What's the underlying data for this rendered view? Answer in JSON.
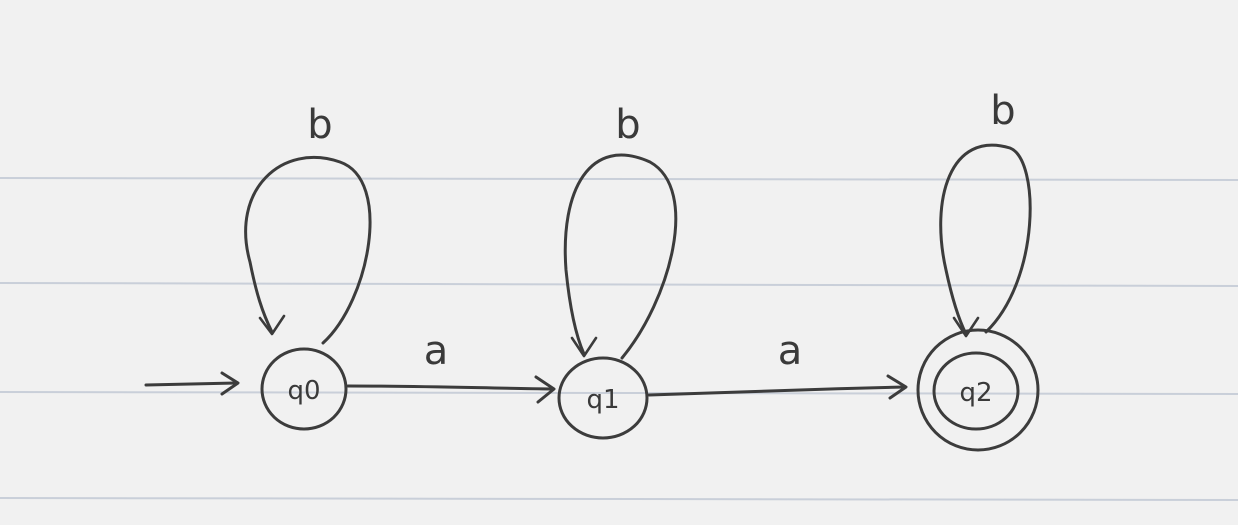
{
  "diagram": {
    "states": [
      {
        "id": "q0",
        "label": "q0",
        "start": true,
        "accepting": false
      },
      {
        "id": "q1",
        "label": "q1",
        "start": false,
        "accepting": false
      },
      {
        "id": "q2",
        "label": "q2",
        "start": false,
        "accepting": true
      }
    ],
    "transitions": [
      {
        "from": "q0",
        "to": "q0",
        "symbol": "b"
      },
      {
        "from": "q1",
        "to": "q1",
        "symbol": "b"
      },
      {
        "from": "q2",
        "to": "q2",
        "symbol": "b"
      },
      {
        "from": "q0",
        "to": "q1",
        "symbol": "a"
      },
      {
        "from": "q1",
        "to": "q2",
        "symbol": "a"
      }
    ]
  },
  "colors": {
    "paper": "#f1f1f1",
    "ruled_line": "#c9cfd9",
    "ink": "#3c3c3c"
  }
}
